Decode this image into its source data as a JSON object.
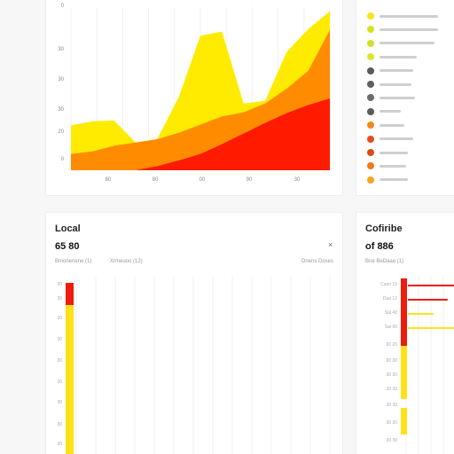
{
  "chart_data": [
    {
      "type": "area",
      "ylabels": [
        "0",
        "30",
        "30",
        "30",
        "20",
        "0"
      ],
      "xlabels": [
        "60",
        "80",
        "00",
        "90",
        "30"
      ],
      "series": [
        {
          "color": "#ff1a00",
          "values": [
            0,
            0,
            0,
            0,
            0.5,
            1.2,
            2.0,
            3.2,
            4.5,
            5.8,
            7.0,
            8.0,
            8.8
          ]
        },
        {
          "color": "#ff8c00",
          "values": [
            2.0,
            2.3,
            3.0,
            3.4,
            3.8,
            4.6,
            5.6,
            6.6,
            7.1,
            8.2,
            10.0,
            12.2,
            17.2
          ]
        },
        {
          "color": "#ffeb00",
          "values": [
            5.5,
            6.0,
            6.1,
            3.4,
            3.8,
            9.0,
            16.5,
            17.0,
            8.2,
            8.5,
            14.5,
            17.3,
            19.5
          ]
        }
      ]
    },
    {
      "type": "bar",
      "title": "Local",
      "value": "65 80",
      "ylabels": [
        "20",
        "30",
        "30",
        "30",
        "30",
        "30",
        "30",
        "30",
        "30"
      ],
      "bar": {
        "red_fraction": 0.13,
        "yellow_fraction": 0.87
      }
    },
    {
      "type": "bar",
      "title": "Cofiribe",
      "value": "of 886",
      "bars": [
        {
          "label": "Cann 19",
          "red": 0.35,
          "yellow": 0
        },
        {
          "label": "Daa 12",
          "red": 0.28,
          "yellow": 0
        },
        {
          "label": "Sal 40",
          "red": 0.18,
          "yellow": 0
        },
        {
          "label": "Sai 90",
          "red": 0.38,
          "yellow": 0
        }
      ]
    }
  ],
  "legend": {
    "items": [
      {
        "color": "#f6e419"
      },
      {
        "color": "#d8e21f"
      },
      {
        "color": "#d4e026"
      },
      {
        "color": "#dfe52a"
      },
      {
        "color": "#5a5a5a"
      },
      {
        "color": "#5f5f5f"
      },
      {
        "color": "#6b6b6b"
      },
      {
        "color": "#5b5b5b"
      },
      {
        "color": "#f08a18"
      },
      {
        "color": "#e84a1a"
      },
      {
        "color": "#d44c18"
      },
      {
        "color": "#ef7a1a"
      },
      {
        "color": "#f4a51c"
      }
    ]
  },
  "local": {
    "meta_left": "Bmonenene (1)",
    "meta_mid": "Xrmeuoo (12)",
    "meta_right": "Dnens Doses",
    "close": "×"
  },
  "compare": {
    "meta": "Bne BeDaae (1)"
  }
}
